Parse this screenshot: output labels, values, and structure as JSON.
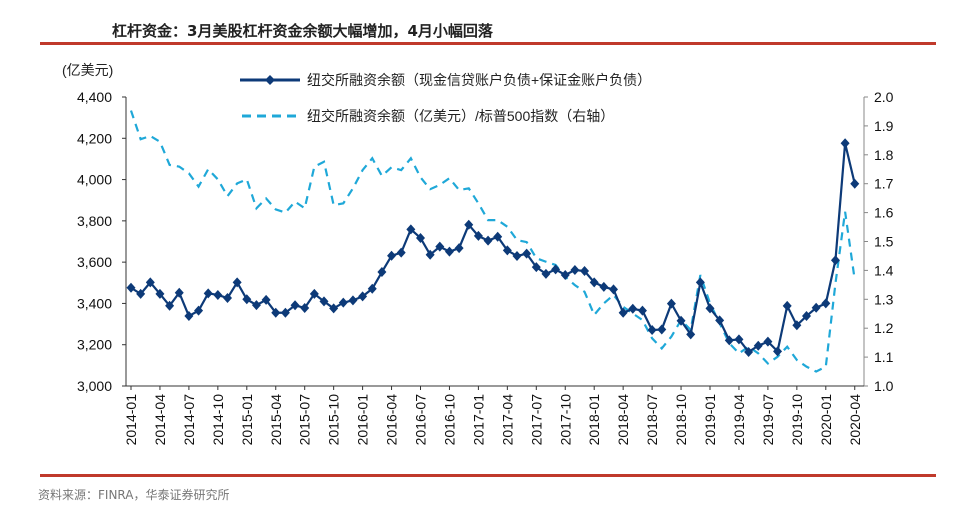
{
  "title": "杠杆资金：3月美股杠杆资金余额大幅增加，4月小幅回落",
  "source": "资料来源：FINRA，华泰证券研究所",
  "colors": {
    "series1": "#0d3a78",
    "series2": "#1fa8d8",
    "rule": "#c0392b"
  },
  "chart_data": {
    "type": "line",
    "ylabel_left": "(亿美元)",
    "ylim_left": [
      3000,
      4400
    ],
    "yticks_left": [
      "3,000",
      "3,200",
      "3,400",
      "3,600",
      "3,800",
      "4,000",
      "4,200",
      "4,400"
    ],
    "ylim_right": [
      1.0,
      2.0
    ],
    "yticks_right": [
      "1.0",
      "1.1",
      "1.2",
      "1.3",
      "1.4",
      "1.5",
      "1.6",
      "1.7",
      "1.8",
      "1.9",
      "2.0"
    ],
    "x_start": "2014-01",
    "x_end": "2020-04",
    "xtick_labels": [
      "2014-01",
      "2014-04",
      "2014-07",
      "2014-10",
      "2015-01",
      "2015-04",
      "2015-07",
      "2015-10",
      "2016-01",
      "2016-04",
      "2016-07",
      "2016-10",
      "2017-01",
      "2017-04",
      "2017-07",
      "2017-10",
      "2018-01",
      "2018-04",
      "2018-07",
      "2018-10",
      "2019-01",
      "2019-04",
      "2019-07",
      "2019-10",
      "2020-01",
      "2020-04"
    ],
    "grid": false,
    "legend_position": "top-center",
    "series": [
      {
        "name": "纽交所融资余额（现金信贷账户负债+保证金账户负债）",
        "axis": "left",
        "style": "solid-diamond",
        "values": [
          3476,
          3446,
          3502,
          3446,
          3389,
          3452,
          3339,
          3365,
          3449,
          3441,
          3426,
          3502,
          3420,
          3392,
          3417,
          3355,
          3355,
          3391,
          3378,
          3446,
          3410,
          3376,
          3404,
          3415,
          3434,
          3471,
          3552,
          3631,
          3646,
          3759,
          3717,
          3636,
          3675,
          3651,
          3668,
          3781,
          3727,
          3704,
          3723,
          3657,
          3630,
          3641,
          3576,
          3543,
          3565,
          3538,
          3562,
          3557,
          3502,
          3480,
          3468,
          3355,
          3374,
          3365,
          3271,
          3274,
          3399,
          3316,
          3250,
          3502,
          3376,
          3318,
          3221,
          3226,
          3165,
          3195,
          3215,
          3168,
          3388,
          3294,
          3339,
          3379,
          3400,
          3609,
          4176,
          3980
        ]
      },
      {
        "name": "纽交所融资余额（亿美元）/标普500指数（右轴）",
        "axis": "right",
        "style": "dashed",
        "values": [
          1.953,
          1.854,
          1.865,
          1.845,
          1.765,
          1.759,
          1.736,
          1.69,
          1.75,
          1.715,
          1.657,
          1.701,
          1.715,
          1.615,
          1.649,
          1.611,
          1.6,
          1.638,
          1.615,
          1.759,
          1.776,
          1.626,
          1.632,
          1.684,
          1.747,
          1.788,
          1.727,
          1.757,
          1.747,
          1.788,
          1.722,
          1.681,
          1.696,
          1.719,
          1.678,
          1.684,
          1.632,
          1.574,
          1.574,
          1.551,
          1.505,
          1.498,
          1.442,
          1.43,
          1.419,
          1.378,
          1.349,
          1.326,
          1.246,
          1.286,
          1.315,
          1.274,
          1.251,
          1.228,
          1.165,
          1.13,
          1.171,
          1.228,
          1.194,
          1.384,
          1.286,
          1.217,
          1.148,
          1.113,
          1.136,
          1.113,
          1.078,
          1.101,
          1.136,
          1.09,
          1.067,
          1.05,
          1.067,
          1.355,
          1.603,
          1.367
        ]
      }
    ]
  }
}
